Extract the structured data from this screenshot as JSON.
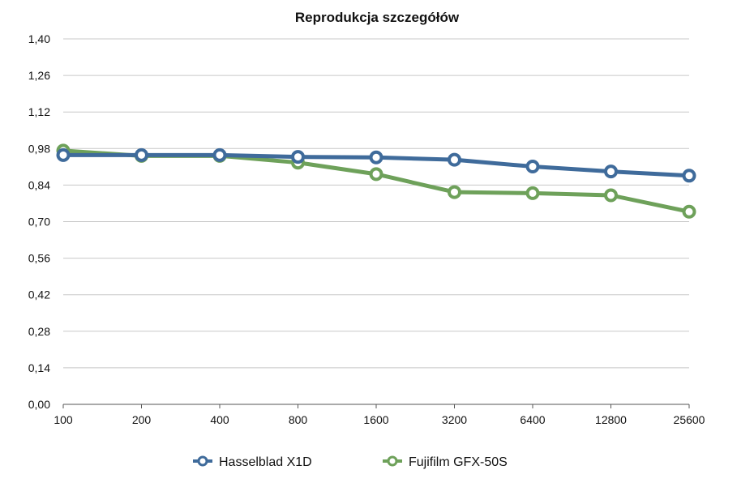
{
  "chart_data": {
    "type": "line",
    "title": "Reprodukcja szczegółów",
    "xlabel": "",
    "ylabel": "",
    "categories": [
      "100",
      "200",
      "400",
      "800",
      "1600",
      "3200",
      "6400",
      "12800",
      "25600"
    ],
    "y_ticks": [
      "0,00",
      "0,14",
      "0,28",
      "0,42",
      "0,56",
      "0,70",
      "0,84",
      "0,98",
      "1,12",
      "1,26",
      "1,40"
    ],
    "ylim": [
      0,
      1.4
    ],
    "grid": true,
    "legend_position": "bottom",
    "series": [
      {
        "name": "Hasselblad X1D",
        "color": "#3f6b9b",
        "values": [
          0.955,
          0.955,
          0.955,
          0.948,
          0.946,
          0.937,
          0.911,
          0.892,
          0.876
        ]
      },
      {
        "name": "Fujifilm GFX-50S",
        "color": "#6ea15a",
        "values": [
          0.972,
          0.952,
          0.952,
          0.926,
          0.882,
          0.813,
          0.809,
          0.801,
          0.738
        ]
      }
    ]
  }
}
